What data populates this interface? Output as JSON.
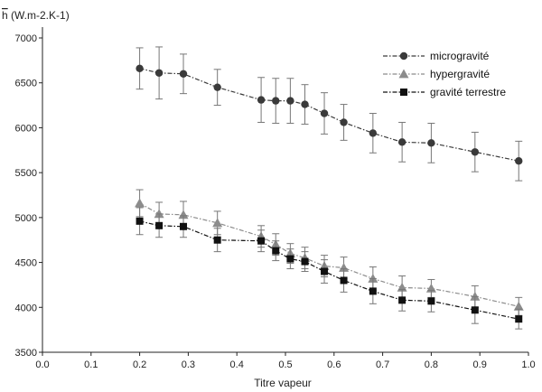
{
  "chart_data": {
    "type": "line",
    "xlabel": "Titre vapeur",
    "ylabel": "h (W.m-2.K-1)",
    "xlim": [
      0.0,
      1.0
    ],
    "ylim": [
      3500,
      7000
    ],
    "x_ticks": [
      "0.0",
      "0.1",
      "0.2",
      "0.3",
      "0.4",
      "0.5",
      "0.6",
      "0.7",
      "0.8",
      "0.9",
      "1.0"
    ],
    "y_ticks": [
      "3500",
      "4000",
      "4500",
      "5000",
      "5500",
      "6000",
      "6500",
      "7000"
    ],
    "legend_position": "top-right",
    "series": [
      {
        "name": "microgravité",
        "marker": "circle",
        "color": "#3a3a3a",
        "x": [
          0.2,
          0.24,
          0.29,
          0.36,
          0.45,
          0.48,
          0.51,
          0.54,
          0.58,
          0.62,
          0.68,
          0.74,
          0.8,
          0.89,
          0.98
        ],
        "y": [
          6660,
          6610,
          6600,
          6450,
          6310,
          6300,
          6300,
          6260,
          6160,
          6060,
          5940,
          5840,
          5830,
          5730,
          5630
        ],
        "err": [
          230,
          290,
          220,
          200,
          250,
          250,
          250,
          220,
          230,
          200,
          220,
          220,
          220,
          220,
          220
        ]
      },
      {
        "name": "hypergravité",
        "marker": "triangle",
        "color": "#8c8c8c",
        "x": [
          0.2,
          0.24,
          0.29,
          0.36,
          0.45,
          0.48,
          0.51,
          0.54,
          0.58,
          0.62,
          0.68,
          0.74,
          0.8,
          0.89,
          0.98
        ],
        "y": [
          5160,
          5040,
          5030,
          4940,
          4790,
          4700,
          4600,
          4550,
          4460,
          4440,
          4320,
          4220,
          4210,
          4120,
          4010
        ],
        "err": [
          150,
          130,
          150,
          130,
          120,
          120,
          110,
          120,
          120,
          120,
          130,
          130,
          100,
          120,
          100
        ]
      },
      {
        "name": "gravité terrestre",
        "marker": "square",
        "color": "#111111",
        "x": [
          0.2,
          0.24,
          0.29,
          0.36,
          0.45,
          0.48,
          0.51,
          0.54,
          0.58,
          0.62,
          0.68,
          0.74,
          0.8,
          0.89,
          0.98
        ],
        "y": [
          4960,
          4910,
          4900,
          4750,
          4740,
          4630,
          4540,
          4510,
          4400,
          4300,
          4180,
          4080,
          4070,
          3970,
          3870
        ],
        "err": [
          150,
          130,
          120,
          130,
          120,
          110,
          110,
          110,
          130,
          130,
          140,
          120,
          120,
          150,
          110
        ]
      }
    ]
  }
}
